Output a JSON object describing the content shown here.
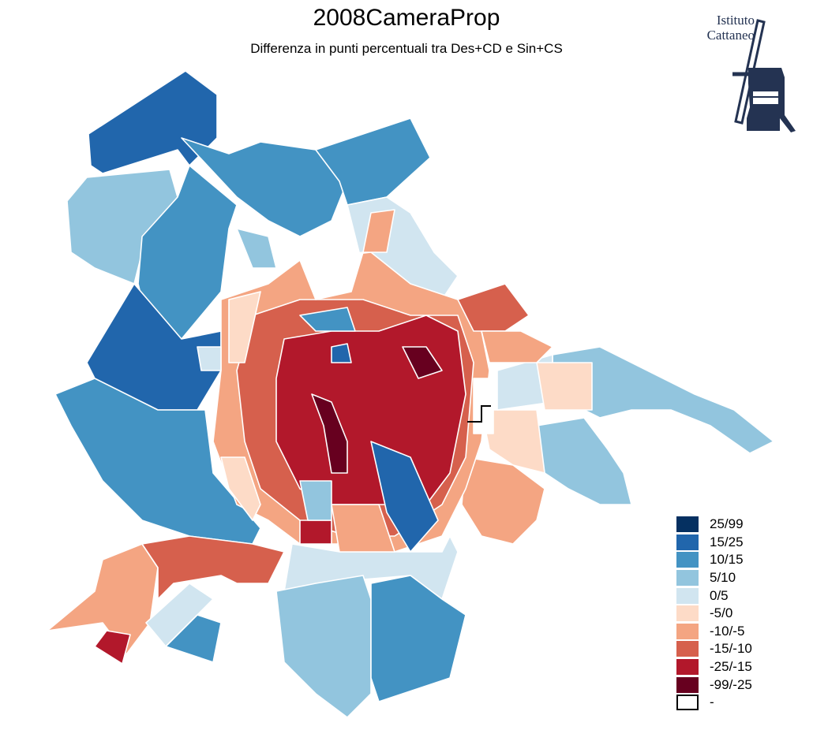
{
  "title": "2008CameraProp",
  "subtitle": "Differenza in punti percentuali tra Des+CD e Sin+CS",
  "logo": {
    "line1": "Istituto",
    "line2": "Cattaneo"
  },
  "legend": [
    {
      "label": "25/99",
      "color": "#053061"
    },
    {
      "label": "15/25",
      "color": "#2166ac"
    },
    {
      "label": "10/15",
      "color": "#4393c3"
    },
    {
      "label": "5/10",
      "color": "#92c5de"
    },
    {
      "label": "0/5",
      "color": "#d1e5f0"
    },
    {
      "label": "-5/0",
      "color": "#fddbc7"
    },
    {
      "label": "-10/-5",
      "color": "#f4a582"
    },
    {
      "label": "-15/-10",
      "color": "#d6604d"
    },
    {
      "label": "-25/-15",
      "color": "#b2182b"
    },
    {
      "label": "-99/-25",
      "color": "#67001f"
    },
    {
      "label": "-",
      "color": "#ffffff"
    }
  ]
}
